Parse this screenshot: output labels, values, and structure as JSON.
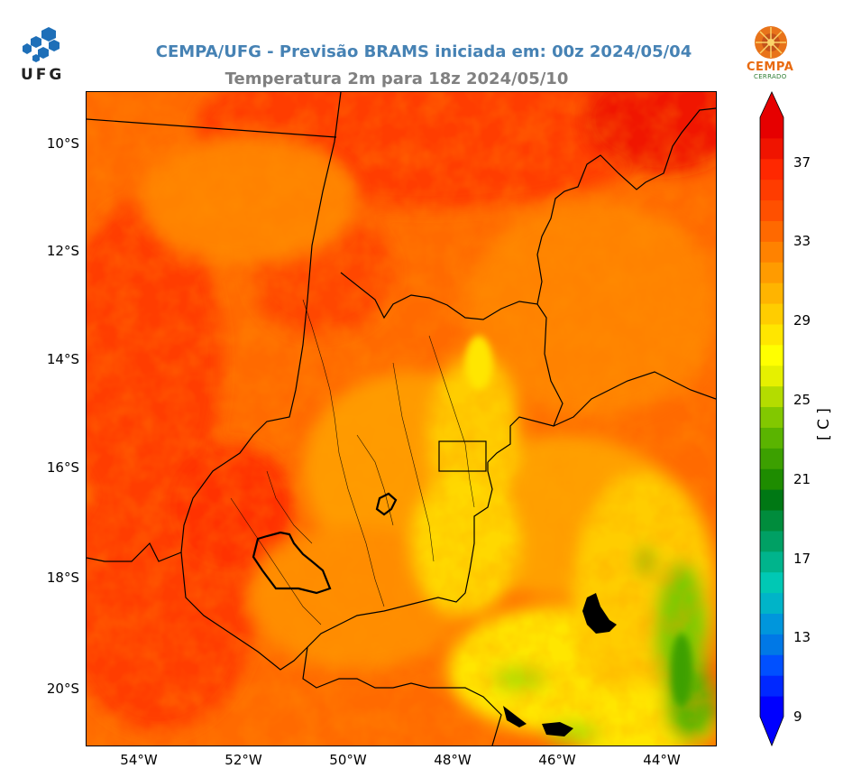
{
  "header": {
    "title_line1": "CEMPA/UFG - Previsão BRAMS iniciada em: 00z 2024/05/04",
    "title_line2": "Temperatura 2m para 18z 2024/05/10"
  },
  "logos": {
    "left_text": "UFG",
    "right_text": "CEMPA",
    "right_subtext": "CERRADO"
  },
  "map": {
    "type": "filled-contour",
    "variable": "Temperatura 2m",
    "lat_ticks": [
      "10°S",
      "12°S",
      "14°S",
      "16°S",
      "18°S",
      "20°S"
    ],
    "lon_ticks": [
      "54°W",
      "52°W",
      "50°W",
      "48°W",
      "46°W",
      "44°W"
    ],
    "extent": {
      "lon": [
        -55,
        -43
      ],
      "lat": [
        -21,
        -9
      ]
    }
  },
  "colorbar": {
    "label": "[ C ]",
    "ticks": [
      "37",
      "33",
      "29",
      "25",
      "21",
      "17",
      "13",
      "9"
    ],
    "range": [
      9,
      39
    ],
    "colors": [
      "#0000ff",
      "#0028ff",
      "#0050ff",
      "#0078e6",
      "#0096dc",
      "#00b4c8",
      "#00c8b4",
      "#00b48c",
      "#00a064",
      "#008c3c",
      "#007814",
      "#1e8c00",
      "#3ca000",
      "#5ab400",
      "#82c800",
      "#b4dc00",
      "#e6f000",
      "#ffff00",
      "#ffe600",
      "#ffcd00",
      "#ffb400",
      "#ff9b00",
      "#ff8200",
      "#ff6900",
      "#ff5000",
      "#ff3c00",
      "#ff2800",
      "#f01400",
      "#e60000"
    ]
  }
}
